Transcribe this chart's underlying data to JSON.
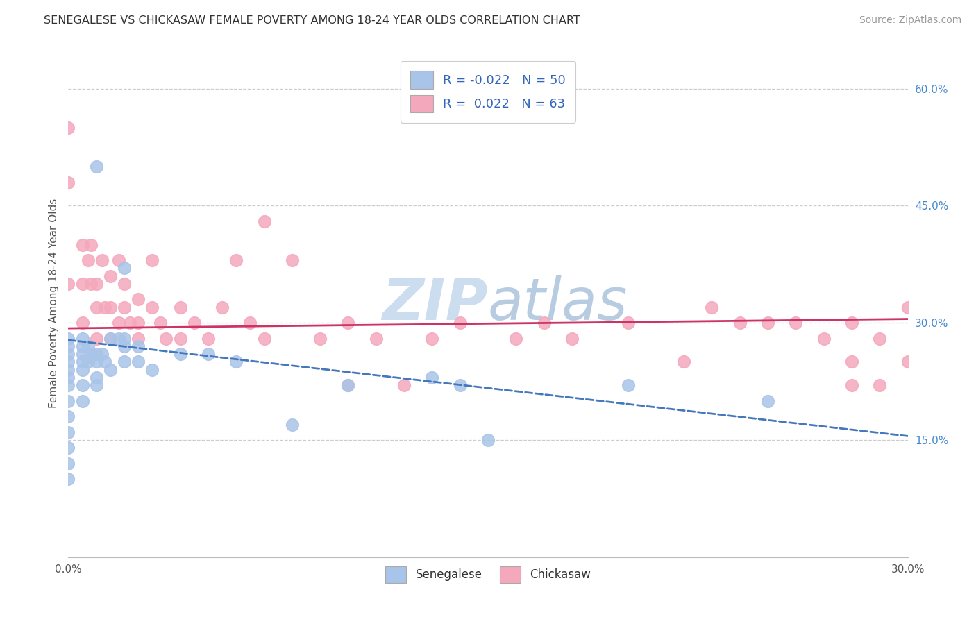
{
  "title": "SENEGALESE VS CHICKASAW FEMALE POVERTY AMONG 18-24 YEAR OLDS CORRELATION CHART",
  "source": "Source: ZipAtlas.com",
  "ylabel": "Female Poverty Among 18-24 Year Olds",
  "x_min": 0.0,
  "x_max": 0.3,
  "y_min": 0.0,
  "y_max": 0.65,
  "x_ticks": [
    0.0,
    0.05,
    0.1,
    0.15,
    0.2,
    0.25,
    0.3
  ],
  "x_tick_labels": [
    "0.0%",
    "",
    "",
    "",
    "",
    "",
    "30.0%"
  ],
  "y_ticks_right": [
    0.15,
    0.3,
    0.45,
    0.6
  ],
  "y_tick_labels_right": [
    "15.0%",
    "30.0%",
    "45.0%",
    "60.0%"
  ],
  "legend_r_senegalese": "-0.022",
  "legend_n_senegalese": "50",
  "legend_r_chickasaw": "0.022",
  "legend_n_chickasaw": "63",
  "color_senegalese": "#a8c4e8",
  "color_chickasaw": "#f4a8bc",
  "trendline_senegalese_color": "#4477bb",
  "trendline_chickasaw_color": "#cc3366",
  "background_color": "#ffffff",
  "watermark_color": "#ccddef",
  "senegalese_x": [
    0.01,
    0.02,
    0.0,
    0.0,
    0.0,
    0.0,
    0.0,
    0.0,
    0.0,
    0.0,
    0.0,
    0.0,
    0.0,
    0.0,
    0.0,
    0.005,
    0.005,
    0.005,
    0.005,
    0.005,
    0.005,
    0.005,
    0.007,
    0.007,
    0.008,
    0.01,
    0.01,
    0.01,
    0.01,
    0.012,
    0.013,
    0.015,
    0.015,
    0.018,
    0.02,
    0.02,
    0.02,
    0.025,
    0.025,
    0.03,
    0.04,
    0.05,
    0.06,
    0.08,
    0.1,
    0.13,
    0.14,
    0.15,
    0.2,
    0.25
  ],
  "senegalese_y": [
    0.5,
    0.37,
    0.28,
    0.27,
    0.26,
    0.25,
    0.24,
    0.23,
    0.22,
    0.2,
    0.18,
    0.16,
    0.14,
    0.12,
    0.1,
    0.28,
    0.27,
    0.26,
    0.25,
    0.24,
    0.22,
    0.2,
    0.27,
    0.25,
    0.26,
    0.26,
    0.25,
    0.23,
    0.22,
    0.26,
    0.25,
    0.28,
    0.24,
    0.28,
    0.28,
    0.27,
    0.25,
    0.27,
    0.25,
    0.24,
    0.26,
    0.26,
    0.25,
    0.17,
    0.22,
    0.23,
    0.22,
    0.15,
    0.22,
    0.2
  ],
  "chickasaw_x": [
    0.0,
    0.0,
    0.0,
    0.005,
    0.005,
    0.005,
    0.007,
    0.008,
    0.008,
    0.01,
    0.01,
    0.01,
    0.012,
    0.013,
    0.015,
    0.015,
    0.015,
    0.018,
    0.018,
    0.02,
    0.02,
    0.022,
    0.025,
    0.025,
    0.025,
    0.03,
    0.03,
    0.033,
    0.035,
    0.04,
    0.04,
    0.045,
    0.05,
    0.055,
    0.06,
    0.065,
    0.07,
    0.07,
    0.08,
    0.09,
    0.1,
    0.11,
    0.12,
    0.13,
    0.14,
    0.16,
    0.17,
    0.18,
    0.2,
    0.22,
    0.23,
    0.24,
    0.25,
    0.26,
    0.27,
    0.28,
    0.28,
    0.29,
    0.29,
    0.3,
    0.3,
    0.28,
    0.1
  ],
  "chickasaw_y": [
    0.55,
    0.48,
    0.35,
    0.4,
    0.35,
    0.3,
    0.38,
    0.4,
    0.35,
    0.35,
    0.32,
    0.28,
    0.38,
    0.32,
    0.36,
    0.32,
    0.28,
    0.38,
    0.3,
    0.35,
    0.32,
    0.3,
    0.33,
    0.3,
    0.28,
    0.38,
    0.32,
    0.3,
    0.28,
    0.32,
    0.28,
    0.3,
    0.28,
    0.32,
    0.38,
    0.3,
    0.43,
    0.28,
    0.38,
    0.28,
    0.3,
    0.28,
    0.22,
    0.28,
    0.3,
    0.28,
    0.3,
    0.28,
    0.3,
    0.25,
    0.32,
    0.3,
    0.3,
    0.3,
    0.28,
    0.3,
    0.25,
    0.22,
    0.28,
    0.25,
    0.32,
    0.22,
    0.22
  ]
}
